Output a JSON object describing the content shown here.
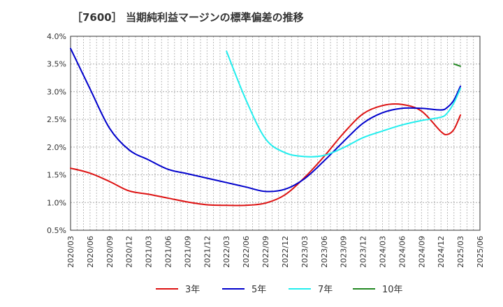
{
  "chart_data": {
    "type": "line",
    "title": "［7600］ 当期純利益マージンの標準偏差の推移",
    "xlabel": "",
    "ylabel": "",
    "ylim": [
      0.005,
      0.04
    ],
    "y_ticks": [
      "0.5%",
      "1.0%",
      "1.5%",
      "2.0%",
      "2.5%",
      "3.0%",
      "3.5%",
      "4.0%"
    ],
    "x_ticks": [
      "2020/03",
      "2020/06",
      "2020/09",
      "2020/12",
      "2021/03",
      "2021/06",
      "2021/09",
      "2021/12",
      "2022/03",
      "2022/06",
      "2022/09",
      "2022/12",
      "2023/03",
      "2023/06",
      "2023/09",
      "2023/12",
      "2024/03",
      "2024/06",
      "2024/09",
      "2024/12",
      "2025/03",
      "2025/06"
    ],
    "grid": true,
    "legend_position": "bottom",
    "colors": {
      "3年": "#dd1111",
      "5年": "#0000cc",
      "7年": "#22eeee",
      "10年": "#228822"
    },
    "series": [
      {
        "name": "3年",
        "x": [
          "2020/03",
          "2020/06",
          "2020/09",
          "2020/12",
          "2021/03",
          "2021/06",
          "2021/09",
          "2021/12",
          "2022/03",
          "2022/06",
          "2022/09",
          "2022/12",
          "2023/03",
          "2023/06",
          "2023/09",
          "2023/12",
          "2024/03",
          "2024/06",
          "2024/09",
          "2024/12",
          "2025/01",
          "2025/02",
          "2025/03"
        ],
        "values": [
          0.0162,
          0.0153,
          0.0138,
          0.0121,
          0.0115,
          0.0108,
          0.0101,
          0.0096,
          0.0095,
          0.0095,
          0.0099,
          0.0114,
          0.0145,
          0.0183,
          0.0225,
          0.026,
          0.0275,
          0.0277,
          0.0265,
          0.0228,
          0.0223,
          0.0232,
          0.0258
        ]
      },
      {
        "name": "5年",
        "x": [
          "2020/03",
          "2020/06",
          "2020/09",
          "2020/12",
          "2021/03",
          "2021/06",
          "2021/09",
          "2021/12",
          "2022/03",
          "2022/06",
          "2022/09",
          "2022/12",
          "2023/03",
          "2023/06",
          "2023/09",
          "2023/12",
          "2024/03",
          "2024/06",
          "2024/09",
          "2024/12",
          "2025/01",
          "2025/02",
          "2025/03"
        ],
        "values": [
          0.0378,
          0.0305,
          0.0234,
          0.0195,
          0.0177,
          0.016,
          0.0152,
          0.0144,
          0.0136,
          0.0128,
          0.012,
          0.0124,
          0.0143,
          0.0175,
          0.021,
          0.0243,
          0.0262,
          0.027,
          0.027,
          0.0267,
          0.0272,
          0.0285,
          0.031
        ]
      },
      {
        "name": "7年",
        "x": [
          "2022/03",
          "2022/06",
          "2022/09",
          "2022/12",
          "2023/03",
          "2023/06",
          "2023/09",
          "2023/12",
          "2024/03",
          "2024/06",
          "2024/09",
          "2024/12",
          "2025/01",
          "2025/02",
          "2025/03"
        ],
        "values": [
          0.0373,
          0.0285,
          0.0215,
          0.019,
          0.0183,
          0.0185,
          0.0199,
          0.0217,
          0.0229,
          0.024,
          0.0248,
          0.0254,
          0.0262,
          0.028,
          0.0306
        ]
      },
      {
        "name": "10年",
        "x": [
          "2025/02",
          "2025/03"
        ],
        "values": [
          0.035,
          0.0346
        ]
      }
    ]
  }
}
